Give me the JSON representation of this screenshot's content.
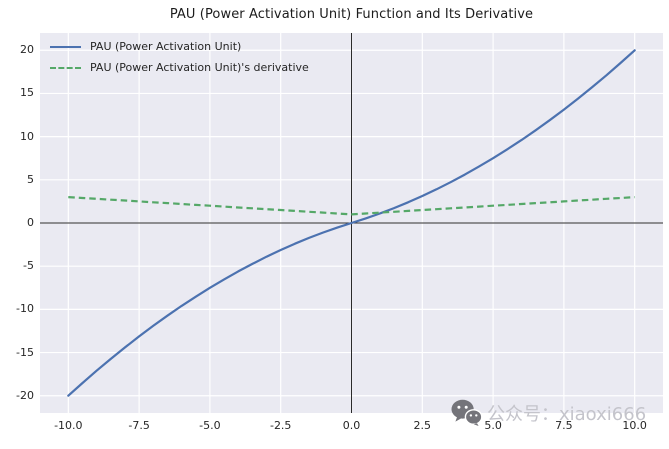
{
  "title": "PAU (Power Activation Unit) Function and Its Derivative",
  "legend": {
    "items": [
      {
        "label": "PAU (Power Activation Unit)",
        "color": "#4C72B0",
        "style": "solid"
      },
      {
        "label": "PAU (Power Activation Unit)'s derivative",
        "color": "#55A868",
        "style": "dashed"
      }
    ]
  },
  "axes": {
    "x_tick_labels": [
      "-10.0",
      "-7.5",
      "-5.0",
      "-2.5",
      "0.0",
      "2.5",
      "5.0",
      "7.5",
      "10.0"
    ],
    "y_tick_labels": [
      "-20",
      "-15",
      "-10",
      "-5",
      "0",
      "5",
      "10",
      "15",
      "20"
    ]
  },
  "watermark": {
    "icon": "wechat-icon",
    "text": "公众号：xiaoxi666"
  },
  "colors": {
    "pau_line": "#4C72B0",
    "derivative_line": "#55A868",
    "plot_background": "#EAEAF2",
    "gridline": "#FFFFFF",
    "zero_line": "#2b2b2b",
    "tick_label": "#262626",
    "watermark_icon": "#74747a",
    "watermark_text": "#c4c4cb"
  },
  "chart_data": {
    "type": "line",
    "title": "PAU (Power Activation Unit) Function and Its Derivative",
    "xlabel": "",
    "ylabel": "",
    "xlim": [
      -11,
      11
    ],
    "ylim": [
      -22,
      22
    ],
    "xticks": [
      -10,
      -7.5,
      -5,
      -2.5,
      0,
      2.5,
      5,
      7.5,
      10
    ],
    "yticks": [
      -20,
      -15,
      -10,
      -5,
      0,
      5,
      10,
      15,
      20
    ],
    "grid": true,
    "zero_lines": true,
    "legend_position": "upper left",
    "x": [
      -10,
      -9.5,
      -9,
      -8.5,
      -8,
      -7.5,
      -7,
      -6.5,
      -6,
      -5.5,
      -5,
      -4.5,
      -4,
      -3.5,
      -3,
      -2.5,
      -2,
      -1.5,
      -1,
      -0.5,
      0,
      0.5,
      1,
      1.5,
      2,
      2.5,
      3,
      3.5,
      4,
      4.5,
      5,
      5.5,
      6,
      6.5,
      7,
      7.5,
      8,
      8.5,
      9,
      9.5,
      10
    ],
    "series": [
      {
        "name": "PAU (Power Activation Unit)",
        "color": "#4C72B0",
        "dash": "solid",
        "values": [
          -20,
          -18.53,
          -17.1,
          -15.73,
          -14.4,
          -13.13,
          -11.9,
          -10.73,
          -9.6,
          -8.53,
          -7.5,
          -6.53,
          -5.6,
          -4.73,
          -3.9,
          -3.13,
          -2.4,
          -1.73,
          -1.1,
          -0.53,
          0,
          0.53,
          1.1,
          1.73,
          2.4,
          3.13,
          3.9,
          4.73,
          5.6,
          6.53,
          7.5,
          8.53,
          9.6,
          10.73,
          11.9,
          13.13,
          14.4,
          15.73,
          17.1,
          18.53,
          20
        ]
      },
      {
        "name": "PAU (Power Activation Unit)'s derivative",
        "color": "#55A868",
        "dash": "dashed",
        "values": [
          3,
          2.9,
          2.8,
          2.7,
          2.6,
          2.5,
          2.4,
          2.3,
          2.2,
          2.1,
          2,
          1.9,
          1.8,
          1.7,
          1.6,
          1.5,
          1.4,
          1.3,
          1.2,
          1.1,
          1,
          1.1,
          1.2,
          1.3,
          1.4,
          1.5,
          1.6,
          1.7,
          1.8,
          1.9,
          2,
          2.1,
          2.2,
          2.3,
          2.4,
          2.5,
          2.6,
          2.7,
          2.8,
          2.9,
          3
        ]
      }
    ]
  }
}
